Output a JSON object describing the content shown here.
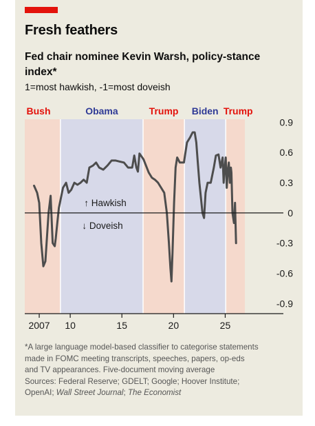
{
  "header": {
    "title": "Fresh feathers",
    "subtitle": "Fed chair nominee Kevin Warsh, policy-stance index*",
    "subnote": "1=most hawkish, -1=most doveish"
  },
  "colors": {
    "accent": "#e3120b",
    "republican_band": "#f5d9cc",
    "democrat_band": "#d7d9e9",
    "republican_text": "#e3120b",
    "democrat_text": "#2f3a96",
    "line": "#4d4d4d",
    "background": "#edebe0"
  },
  "chart_data": {
    "type": "line",
    "xlim": [
      2005.6,
      2026.9
    ],
    "ylim": [
      -1.0,
      0.93
    ],
    "yticks": [
      0.9,
      0.6,
      0.3,
      0,
      -0.3,
      -0.6,
      -0.9
    ],
    "ytick_labels": [
      "0.9",
      "0.6",
      "0.3",
      "0",
      "-0.3",
      "-0.6",
      "-0.9"
    ],
    "xticks": [
      2007,
      2010,
      2015,
      2020,
      2025
    ],
    "xtick_labels": [
      "2007",
      "10",
      "15",
      "20",
      "25"
    ],
    "grid": false,
    "baseline": 0,
    "annotations": {
      "hawkish": "↑ Hawkish",
      "doveish": "↓ Doveish"
    },
    "presidencies": [
      {
        "name": "Bush",
        "start": 2005.6,
        "end": 2009.05,
        "party": "R"
      },
      {
        "name": "Obama",
        "start": 2009.05,
        "end": 2017.05,
        "party": "D"
      },
      {
        "name": "Trump",
        "start": 2017.05,
        "end": 2021.05,
        "party": "R"
      },
      {
        "name": "Biden",
        "start": 2021.05,
        "end": 2025.05,
        "party": "D"
      },
      {
        "name": "Trump",
        "start": 2025.05,
        "end": 2026.9,
        "party": "R"
      }
    ],
    "series": [
      {
        "name": "",
        "x": [
          2006.5,
          2006.8,
          2007.0,
          2007.2,
          2007.4,
          2007.6,
          2007.9,
          2008.1,
          2008.3,
          2008.5,
          2008.6,
          2008.75,
          2008.9,
          2009.0,
          2009.3,
          2009.6,
          2009.85,
          2010.1,
          2010.4,
          2010.7,
          2011.0,
          2011.3,
          2011.6,
          2011.85,
          2012.2,
          2012.5,
          2012.8,
          2013.2,
          2013.6,
          2014.0,
          2014.4,
          2014.8,
          2015.2,
          2015.6,
          2016.0,
          2016.2,
          2016.4,
          2016.55,
          2016.7,
          2017.1,
          2017.6,
          2017.9,
          2018.2,
          2018.5,
          2018.8,
          2019.1,
          2019.35,
          2019.55,
          2019.7,
          2019.8,
          2019.9,
          2020.05,
          2020.2,
          2020.35,
          2020.6,
          2021.0,
          2021.3,
          2021.6,
          2021.85,
          2022.05,
          2022.2,
          2022.35,
          2022.5,
          2022.6,
          2022.8,
          2022.95,
          2023.1,
          2023.3,
          2023.6,
          2023.9,
          2024.1,
          2024.35,
          2024.55,
          2024.75,
          2024.85,
          2024.95,
          2025.05,
          2025.15,
          2025.25,
          2025.35,
          2025.45,
          2025.55,
          2025.6,
          2025.7,
          2025.85,
          2025.95,
          2026.05
        ],
        "y": [
          0.27,
          0.2,
          0.1,
          -0.3,
          -0.53,
          -0.48,
          0.0,
          0.17,
          -0.3,
          -0.33,
          -0.25,
          -0.1,
          0.05,
          0.1,
          0.25,
          0.3,
          0.2,
          0.23,
          0.3,
          0.28,
          0.3,
          0.33,
          0.3,
          0.45,
          0.47,
          0.5,
          0.45,
          0.43,
          0.47,
          0.52,
          0.52,
          0.51,
          0.5,
          0.45,
          0.45,
          0.57,
          0.45,
          0.41,
          0.59,
          0.53,
          0.4,
          0.35,
          0.33,
          0.3,
          0.25,
          0.2,
          0.0,
          -0.3,
          -0.55,
          -0.68,
          -0.4,
          0.1,
          0.45,
          0.55,
          0.5,
          0.5,
          0.7,
          0.75,
          0.8,
          0.8,
          0.7,
          0.5,
          0.3,
          0.2,
          0.0,
          -0.05,
          0.2,
          0.3,
          0.3,
          0.45,
          0.57,
          0.58,
          0.45,
          0.55,
          0.3,
          0.45,
          0.55,
          0.25,
          0.42,
          0.5,
          0.3,
          0.45,
          0.4,
          0.0,
          -0.1,
          0.1,
          -0.3
        ]
      }
    ]
  },
  "footnote": {
    "lines": [
      "*A large language model-based classifier to categorise statements",
      "made in FOMC meeting transcripts, speeches, papers, op-eds",
      "and TV appearances. Five-document moving average"
    ],
    "sources_prefix": "Sources: Federal Reserve; GDELT; Google; Hoover Institute;",
    "sources_line2_start": "OpenAI; ",
    "sources_wsj": "Wall Street Journal",
    "sources_sep": "; ",
    "sources_economist": "The Economist"
  }
}
